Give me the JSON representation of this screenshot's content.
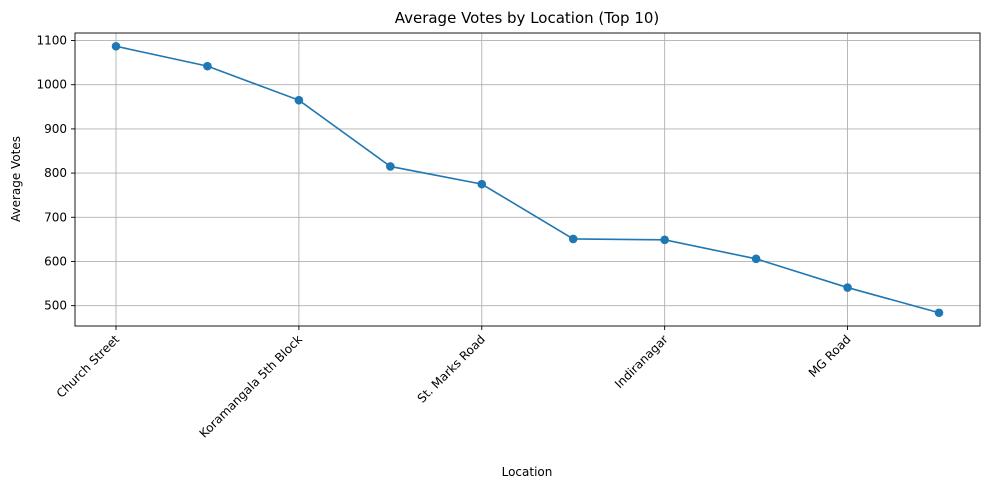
{
  "chart_data": {
    "type": "line",
    "title": "Average Votes by Location (Top 10)",
    "xlabel": "Location",
    "ylabel": "Average Votes",
    "x_tick_labels": [
      "Church Street",
      "Koramangala 5th Block",
      "St. Marks Road",
      "Indiranagar",
      "MG Road"
    ],
    "x_tick_indices": [
      0,
      2,
      4,
      6,
      8
    ],
    "values": [
      1087,
      1042,
      965,
      815,
      775,
      651,
      649,
      606,
      541,
      484
    ],
    "yticks": [
      500,
      600,
      700,
      800,
      900,
      1000,
      1100
    ],
    "ylim": [
      454,
      1117
    ],
    "grid": true,
    "color": "#1f77b4"
  }
}
